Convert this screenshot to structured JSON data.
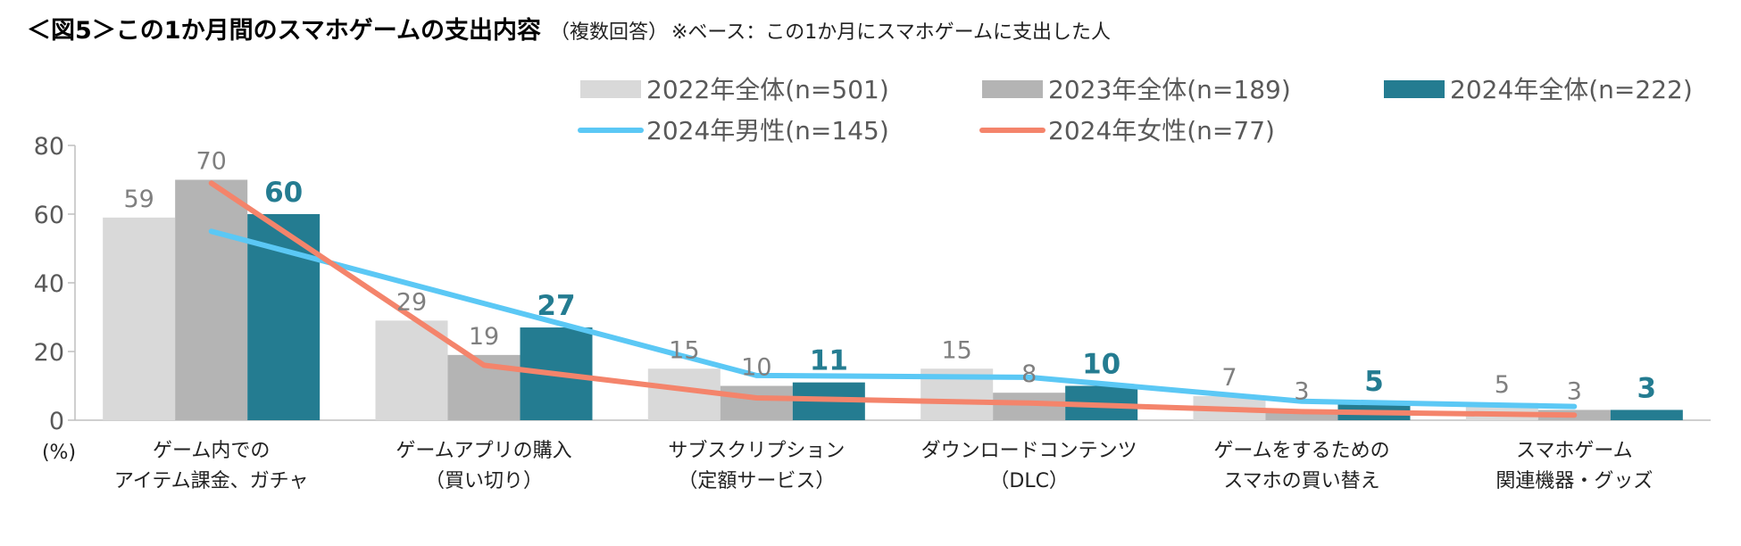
{
  "title": {
    "main": "＜図5＞この1か月間のスマホゲームの支出内容",
    "sub": "（複数回答）",
    "note": "※ベース：この1か月にスマホゲームに支出した人"
  },
  "chart_data": {
    "type": "bar+line",
    "ylim": [
      0,
      80
    ],
    "yticks": [
      0,
      20,
      40,
      60,
      80
    ],
    "ylabel": "(%)",
    "categories": [
      [
        "ゲーム内での",
        "アイテム課金、ガチャ"
      ],
      [
        "ゲームアプリの購入",
        "（買い切り）"
      ],
      [
        "サブスクリプション",
        "（定額サービス）"
      ],
      [
        "ダウンロードコンテンツ",
        "（DLC）"
      ],
      [
        "ゲームをするための",
        "スマホの買い替え"
      ],
      [
        "スマホゲーム",
        "関連機器・グッズ"
      ]
    ],
    "bar_series": [
      {
        "name": "2022年全体(n=501)",
        "color": "#d9d9d9",
        "values": [
          59,
          29,
          15,
          15,
          7,
          5
        ],
        "label_style": "normal"
      },
      {
        "name": "2023年全体(n=189)",
        "color": "#b4b4b4",
        "values": [
          70,
          19,
          10,
          8,
          3,
          3
        ],
        "label_style": "normal"
      },
      {
        "name": "2024年全体(n=222)",
        "color": "#247c91",
        "values": [
          60,
          27,
          11,
          10,
          5,
          3
        ],
        "label_style": "bold"
      }
    ],
    "line_series": [
      {
        "name": "2024年男性(n=145)",
        "color": "#5bc8f5",
        "values": [
          55,
          34,
          13,
          12.5,
          5.5,
          4
        ]
      },
      {
        "name": "2024年女性(n=77)",
        "color": "#f4846b",
        "values": [
          69,
          16,
          6.5,
          5,
          2.5,
          1.5
        ]
      }
    ]
  }
}
